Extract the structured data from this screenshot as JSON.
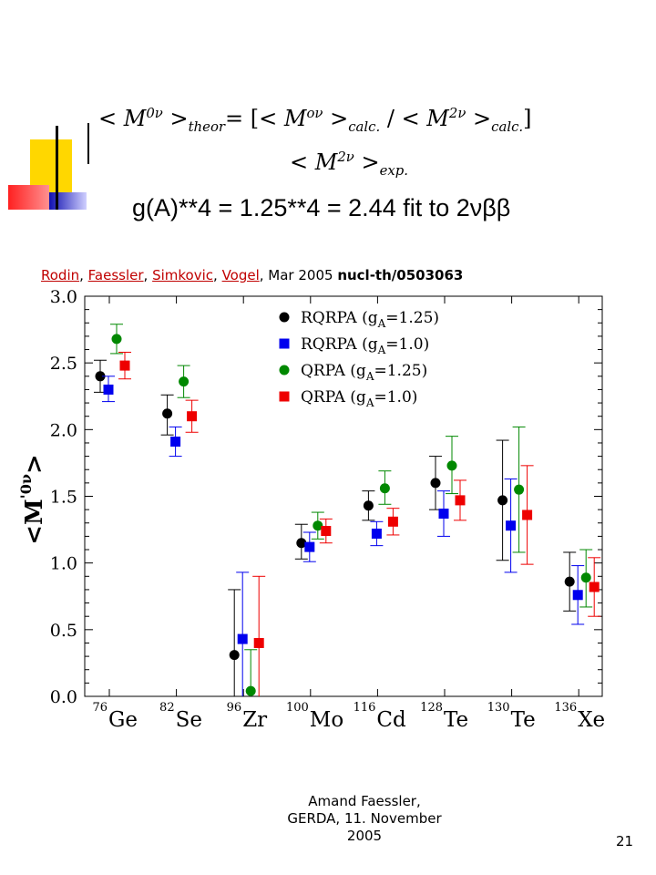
{
  "formula": {
    "lhs": "< M",
    "lhs_sup": "0ν",
    "lhs_close": " >",
    "lhs_sub": "theor",
    "eq": "= [",
    "t1": "< M",
    "t1_sup": "oν",
    "t1_close": " >",
    "t1_sub": "calc.",
    "slash": " / ",
    "t2": "< M",
    "t2_sup": "2ν",
    "t2_close": " >",
    "t2_sub": "calc.",
    "bracket_close": "]",
    "t3": "< M",
    "t3_sup": "2ν",
    "t3_close": " >",
    "t3_sub": "exp."
  },
  "gline": "g(A)**4 = 1.25**4 = 2.44 fit to 2νββ",
  "authors": {
    "links": [
      "Rodin",
      "Faessler",
      "Simkovic",
      "Vogel"
    ],
    "date": ", Mar 2005 ",
    "ref": "nucl-th/0503063"
  },
  "footer": {
    "line1": "Amand Faessler,",
    "line2": "GERDA, 11. November",
    "line3": "2005"
  },
  "page_number": "21",
  "colors": {
    "black_series": "#000000",
    "blue_series": "#0000ee",
    "green_series": "#008800",
    "red_series": "#ee0000",
    "deco_yellow": "#ffd700",
    "deco_red": "#ff3030",
    "deco_blue": "#2020c0"
  },
  "chart_data": {
    "type": "scatter",
    "ylabel": "<M'0ν>",
    "ylim": [
      0.0,
      3.0
    ],
    "yticks": [
      "0.0",
      "0.5",
      "1.0",
      "1.5",
      "2.0",
      "2.5",
      "3.0"
    ],
    "categories": [
      {
        "mass": "76",
        "element": "Ge"
      },
      {
        "mass": "82",
        "element": "Se"
      },
      {
        "mass": "96",
        "element": "Zr"
      },
      {
        "mass": "100",
        "element": "Mo"
      },
      {
        "mass": "116",
        "element": "Cd"
      },
      {
        "mass": "128",
        "element": "Te"
      },
      {
        "mass": "130",
        "element": "Te"
      },
      {
        "mass": "136",
        "element": "Xe"
      }
    ],
    "legend_position": "top-center",
    "series": [
      {
        "name": "RQRPA (gA=1.25)",
        "label_main": "RQRPA (g",
        "label_sub": "A",
        "label_end": "=1.25)",
        "marker": "circle",
        "color": "#000000",
        "values": [
          2.4,
          2.12,
          0.31,
          1.15,
          1.43,
          1.6,
          1.47,
          0.86
        ],
        "err_low": [
          2.28,
          1.96,
          0.0,
          1.03,
          1.32,
          1.4,
          1.02,
          0.64
        ],
        "err_high": [
          2.52,
          2.26,
          0.8,
          1.29,
          1.54,
          1.8,
          1.92,
          1.08
        ]
      },
      {
        "name": "RQRPA (gA=1.0)",
        "label_main": "RQRPA (g",
        "label_sub": "A",
        "label_end": "=1.0)",
        "marker": "square",
        "color": "#0000ee",
        "values": [
          2.3,
          1.91,
          0.43,
          1.12,
          1.22,
          1.37,
          1.28,
          0.76
        ],
        "err_low": [
          2.21,
          1.8,
          0.0,
          1.01,
          1.13,
          1.2,
          0.93,
          0.54
        ],
        "err_high": [
          2.4,
          2.02,
          0.93,
          1.23,
          1.31,
          1.54,
          1.63,
          0.98
        ]
      },
      {
        "name": "QRPA (gA=1.25)",
        "label_main": "QRPA   (g",
        "label_sub": "A",
        "label_end": "=1.25)",
        "marker": "circle",
        "color": "#008800",
        "values": [
          2.68,
          2.36,
          0.04,
          1.28,
          1.56,
          1.73,
          1.55,
          0.89
        ],
        "err_low": [
          2.57,
          2.24,
          0.0,
          1.18,
          1.44,
          1.52,
          1.08,
          0.67
        ],
        "err_high": [
          2.79,
          2.48,
          0.35,
          1.38,
          1.69,
          1.95,
          2.02,
          1.1
        ]
      },
      {
        "name": "QRPA (gA=1.0)",
        "label_main": "QRPA   (g",
        "label_sub": "A",
        "label_end": "=1.0)",
        "marker": "square",
        "color": "#ee0000",
        "values": [
          2.48,
          2.1,
          0.4,
          1.24,
          1.31,
          1.47,
          1.36,
          0.82
        ],
        "err_low": [
          2.38,
          1.98,
          0.0,
          1.15,
          1.21,
          1.32,
          0.99,
          0.6
        ],
        "err_high": [
          2.58,
          2.22,
          0.9,
          1.33,
          1.41,
          1.62,
          1.73,
          1.04
        ]
      }
    ]
  }
}
